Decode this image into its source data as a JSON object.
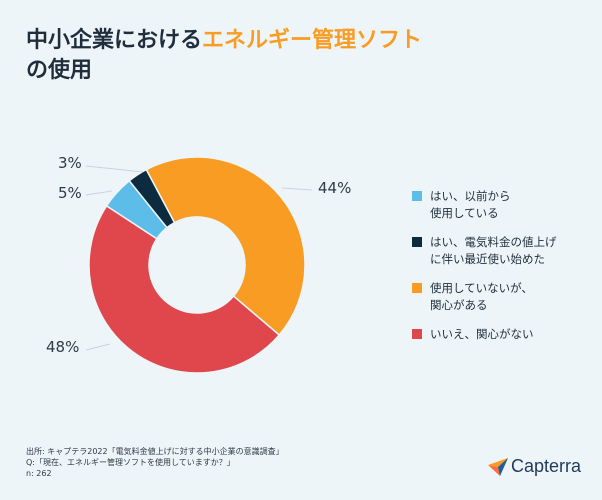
{
  "title": {
    "part1": "中小企業における",
    "highlight": "エネルギー管理ソフト",
    "line2": "の使用",
    "highlight_color": "#f89c23"
  },
  "chart_data": {
    "type": "pie",
    "donut": true,
    "categories": [
      "はい、以前から使用している",
      "はい、電気料金の値上げに伴い最近使い始めた",
      "使用していないが、関心がある",
      "いいえ、関心がない"
    ],
    "legend_labels": [
      "はい、以前から\n使用している",
      "はい、電気料金の値上げ\nに伴い最近使い始めた",
      "使用していないが、\n関心がある",
      "いいえ、関心がない"
    ],
    "values": [
      5,
      3,
      44,
      48
    ],
    "value_labels": [
      "5%",
      "3%",
      "44%",
      "48%"
    ],
    "colors": [
      "#5bbde8",
      "#0d2b3e",
      "#f89c23",
      "#e0474c"
    ],
    "legend_position": "right"
  },
  "footer": {
    "source": "出所: キャプテラ2022「電気料金値上げに対する中小企業の意識調査」",
    "question": "Q:「現在、エネルギー管理ソフトを使用していますか？」",
    "n": "n: 262"
  },
  "logo": {
    "text": "Capterra",
    "icon": "capterra-arrow-icon"
  }
}
